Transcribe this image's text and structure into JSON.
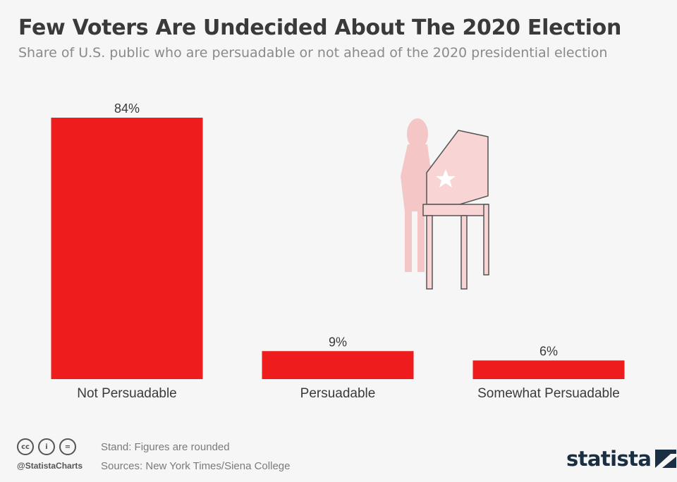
{
  "title": "Few Voters Are Undecided About The 2020 Election",
  "subtitle": "Share of U.S. public who are persuadable or not ahead of the 2020 presidential election",
  "chart_data": {
    "type": "bar",
    "categories": [
      "Not Persuadable",
      "Persuadable",
      "Somewhat Persuadable"
    ],
    "values": [
      84,
      9,
      6
    ],
    "value_labels": [
      "84%",
      "9%",
      "6%"
    ],
    "ylim": [
      0,
      84
    ],
    "grid": false,
    "bar_color": "#ee1c1c"
  },
  "footer": {
    "note": "Stand: Figures are rounded",
    "sources": "Sources: New York Times/Siena College",
    "handle": "@StatistaCharts",
    "brand": "statista",
    "license_icons": [
      "cc-icon",
      "by-icon",
      "nd-icon"
    ]
  },
  "colors": {
    "background": "#f6f6f6",
    "title": "#3a3a3a",
    "subtitle": "#8a8a8a",
    "bar": "#ee1c1c",
    "illustration": "#f5c6c6",
    "brand": "#1a2e44"
  }
}
